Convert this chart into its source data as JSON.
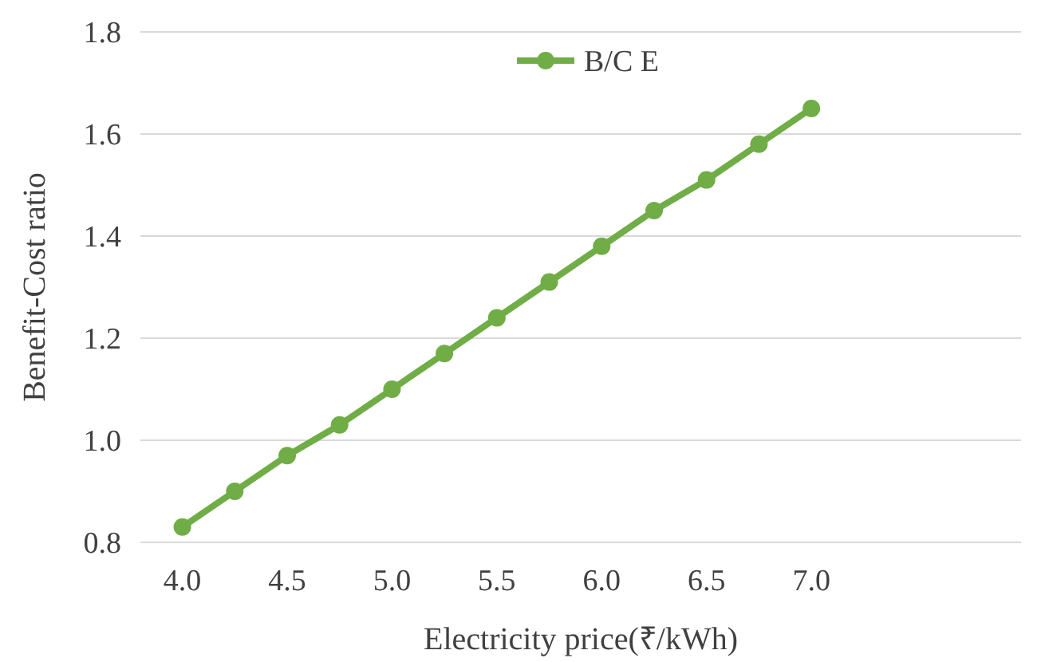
{
  "chart_data": {
    "type": "line",
    "xlabel": "Electricity price(₹/kWh)",
    "ylabel": "Benefit-Cost ratio",
    "xlim": [
      3.8,
      8.0
    ],
    "xticks": [
      {
        "value": 4,
        "label": "4.0"
      },
      4.5,
      {
        "value": 5,
        "label": "5.0"
      },
      5.5,
      {
        "value": 6,
        "label": "6.0"
      },
      6.5,
      {
        "value": 7,
        "label": "7.0"
      }
    ],
    "ylim": [
      0.8,
      1.8
    ],
    "yticks": [
      {
        "value": 0.8,
        "label": "0.8"
      },
      {
        "value": 1,
        "label": "1.0"
      },
      {
        "value": 1.2,
        "label": "1.2"
      },
      {
        "value": 1.4,
        "label": "1.4"
      },
      {
        "value": 1.6,
        "label": "1.6"
      },
      {
        "value": 1.8,
        "label": "1.8"
      }
    ],
    "x": [
      4,
      4.25,
      4.5,
      4.75,
      5,
      5.25,
      5.5,
      5.75,
      6,
      6.25,
      6.5,
      6.75,
      7
    ],
    "series": [
      {
        "name": "B/C E",
        "color": "#70ad47",
        "values": [
          0.83,
          0.9,
          0.97,
          1.03,
          1.1,
          1.17,
          1.24,
          1.31,
          1.38,
          1.45,
          1.51,
          1.58,
          1.65
        ]
      }
    ],
    "grid": "y",
    "legend": "top",
    "marker": "circle",
    "line_style": "solid"
  }
}
